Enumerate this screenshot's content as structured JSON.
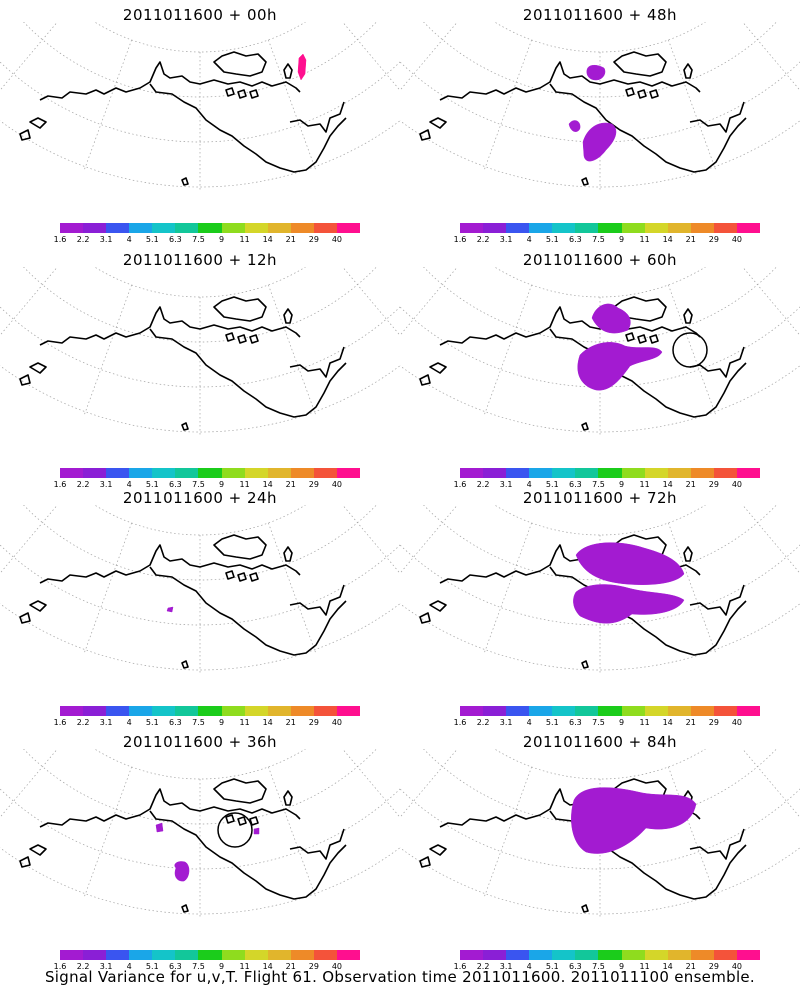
{
  "panels": [
    {
      "title": "2011011600 + 00h",
      "blobs": [
        {
          "region": "northeast-coast",
          "color": "#ff0f8f"
        }
      ]
    },
    {
      "title": "2011011600 + 12h",
      "blobs": []
    },
    {
      "title": "2011011600 + 24h",
      "blobs": [
        {
          "region": "gulf-of-alaska-small",
          "color": "#a31bd1"
        }
      ]
    },
    {
      "title": "2011011600 + 36h",
      "blobs": [
        {
          "region": "pacific-small-west",
          "color": "#a31bd1"
        },
        {
          "region": "pacific-small-south",
          "color": "#a31bd1"
        },
        {
          "region": "arctic-small",
          "color": "#a31bd1"
        }
      ],
      "circle": true
    },
    {
      "title": "2011011600 + 48h",
      "blobs": [
        {
          "region": "bering-north",
          "color": "#a31bd1"
        },
        {
          "region": "gulf-of-alaska",
          "color": "#a31bd1"
        }
      ]
    },
    {
      "title": "2011011600 + 60h",
      "blobs": [
        {
          "region": "beaufort",
          "color": "#a31bd1"
        },
        {
          "region": "gulf-of-alaska-large",
          "color": "#a31bd1"
        }
      ],
      "circle": true
    },
    {
      "title": "2011011600 + 72h",
      "blobs": [
        {
          "region": "arctic-broad",
          "color": "#a31bd1"
        },
        {
          "region": "gulf-broad",
          "color": "#a31bd1"
        }
      ]
    },
    {
      "title": "2011011600 + 84h",
      "blobs": [
        {
          "region": "arctic-broad",
          "color": "#a31bd1"
        },
        {
          "region": "gulf-very-broad",
          "color": "#a31bd1"
        }
      ]
    }
  ],
  "colorbar": {
    "labels": [
      "1.6",
      "2.2",
      "3.1",
      "4",
      "5.1",
      "6.3",
      "7.5",
      "9",
      "11",
      "14",
      "21",
      "29",
      "40"
    ],
    "colors": [
      "#a31bd1",
      "#8a1fd6",
      "#3a55f0",
      "#1aa6e8",
      "#14c4c9",
      "#12c79a",
      "#1bcc1b",
      "#8fdc1e",
      "#d4d629",
      "#e1b52c",
      "#ee8a28",
      "#f4533a",
      "#ff0f8f"
    ]
  },
  "footer": "Signal Variance for u,v,T. Flight 61. Observation time 2011011600. 2011011100 ensemble."
}
